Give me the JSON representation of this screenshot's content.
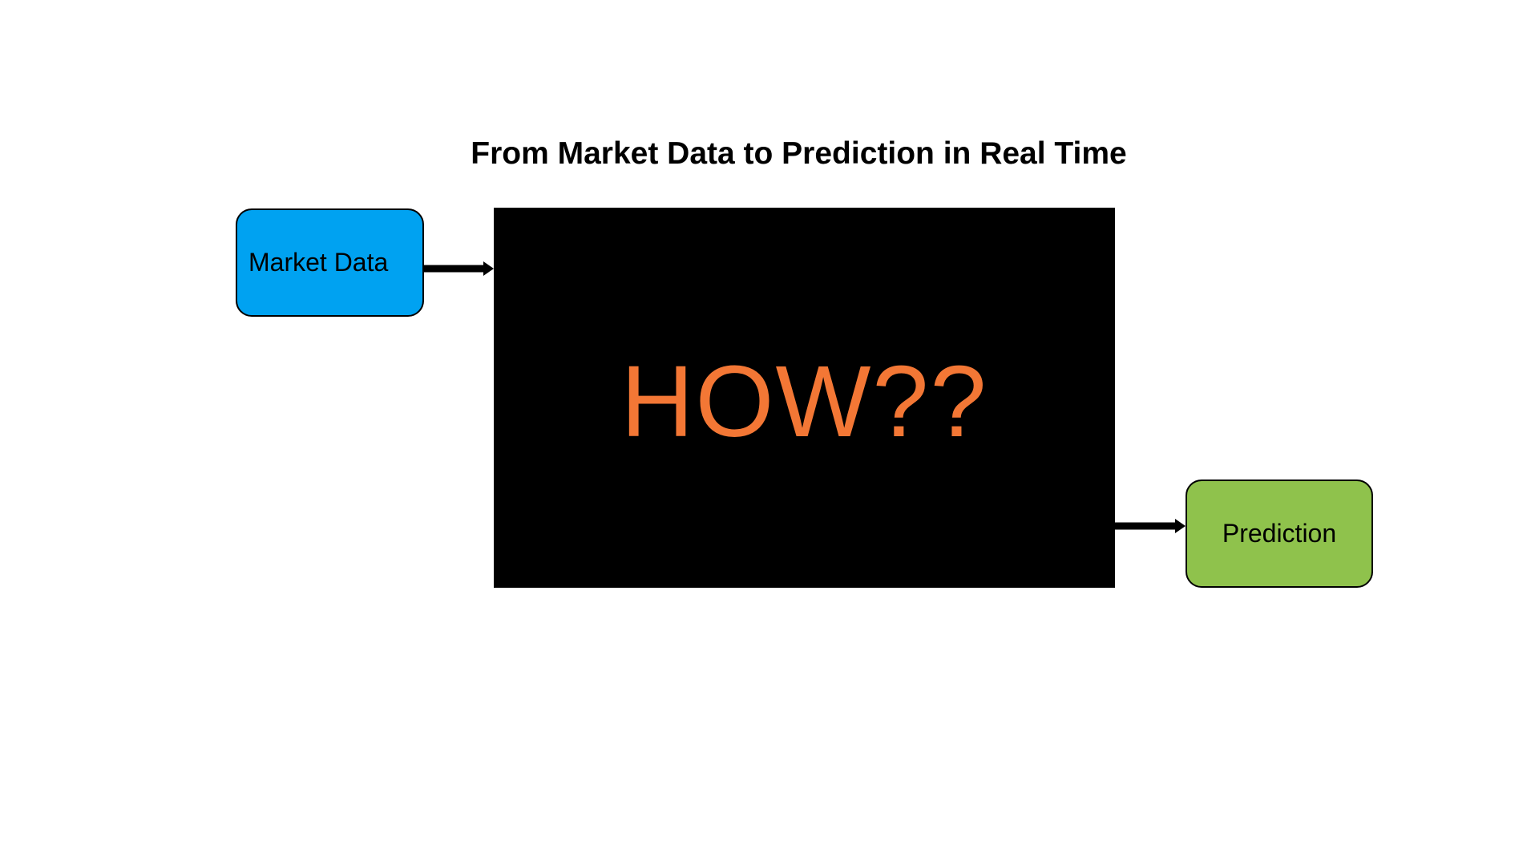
{
  "diagram": {
    "title": "From Market Data to Prediction in Real Time",
    "nodes": {
      "input": {
        "label": "Market Data",
        "color": "#00a2f1"
      },
      "process": {
        "label": "HOW??",
        "color": "#000000",
        "text_color": "#f37735"
      },
      "output": {
        "label": "Prediction",
        "color": "#8fc24c"
      }
    },
    "edges": [
      {
        "from": "Market Data",
        "to": "HOW??"
      },
      {
        "from": "HOW??",
        "to": "Prediction"
      }
    ]
  }
}
